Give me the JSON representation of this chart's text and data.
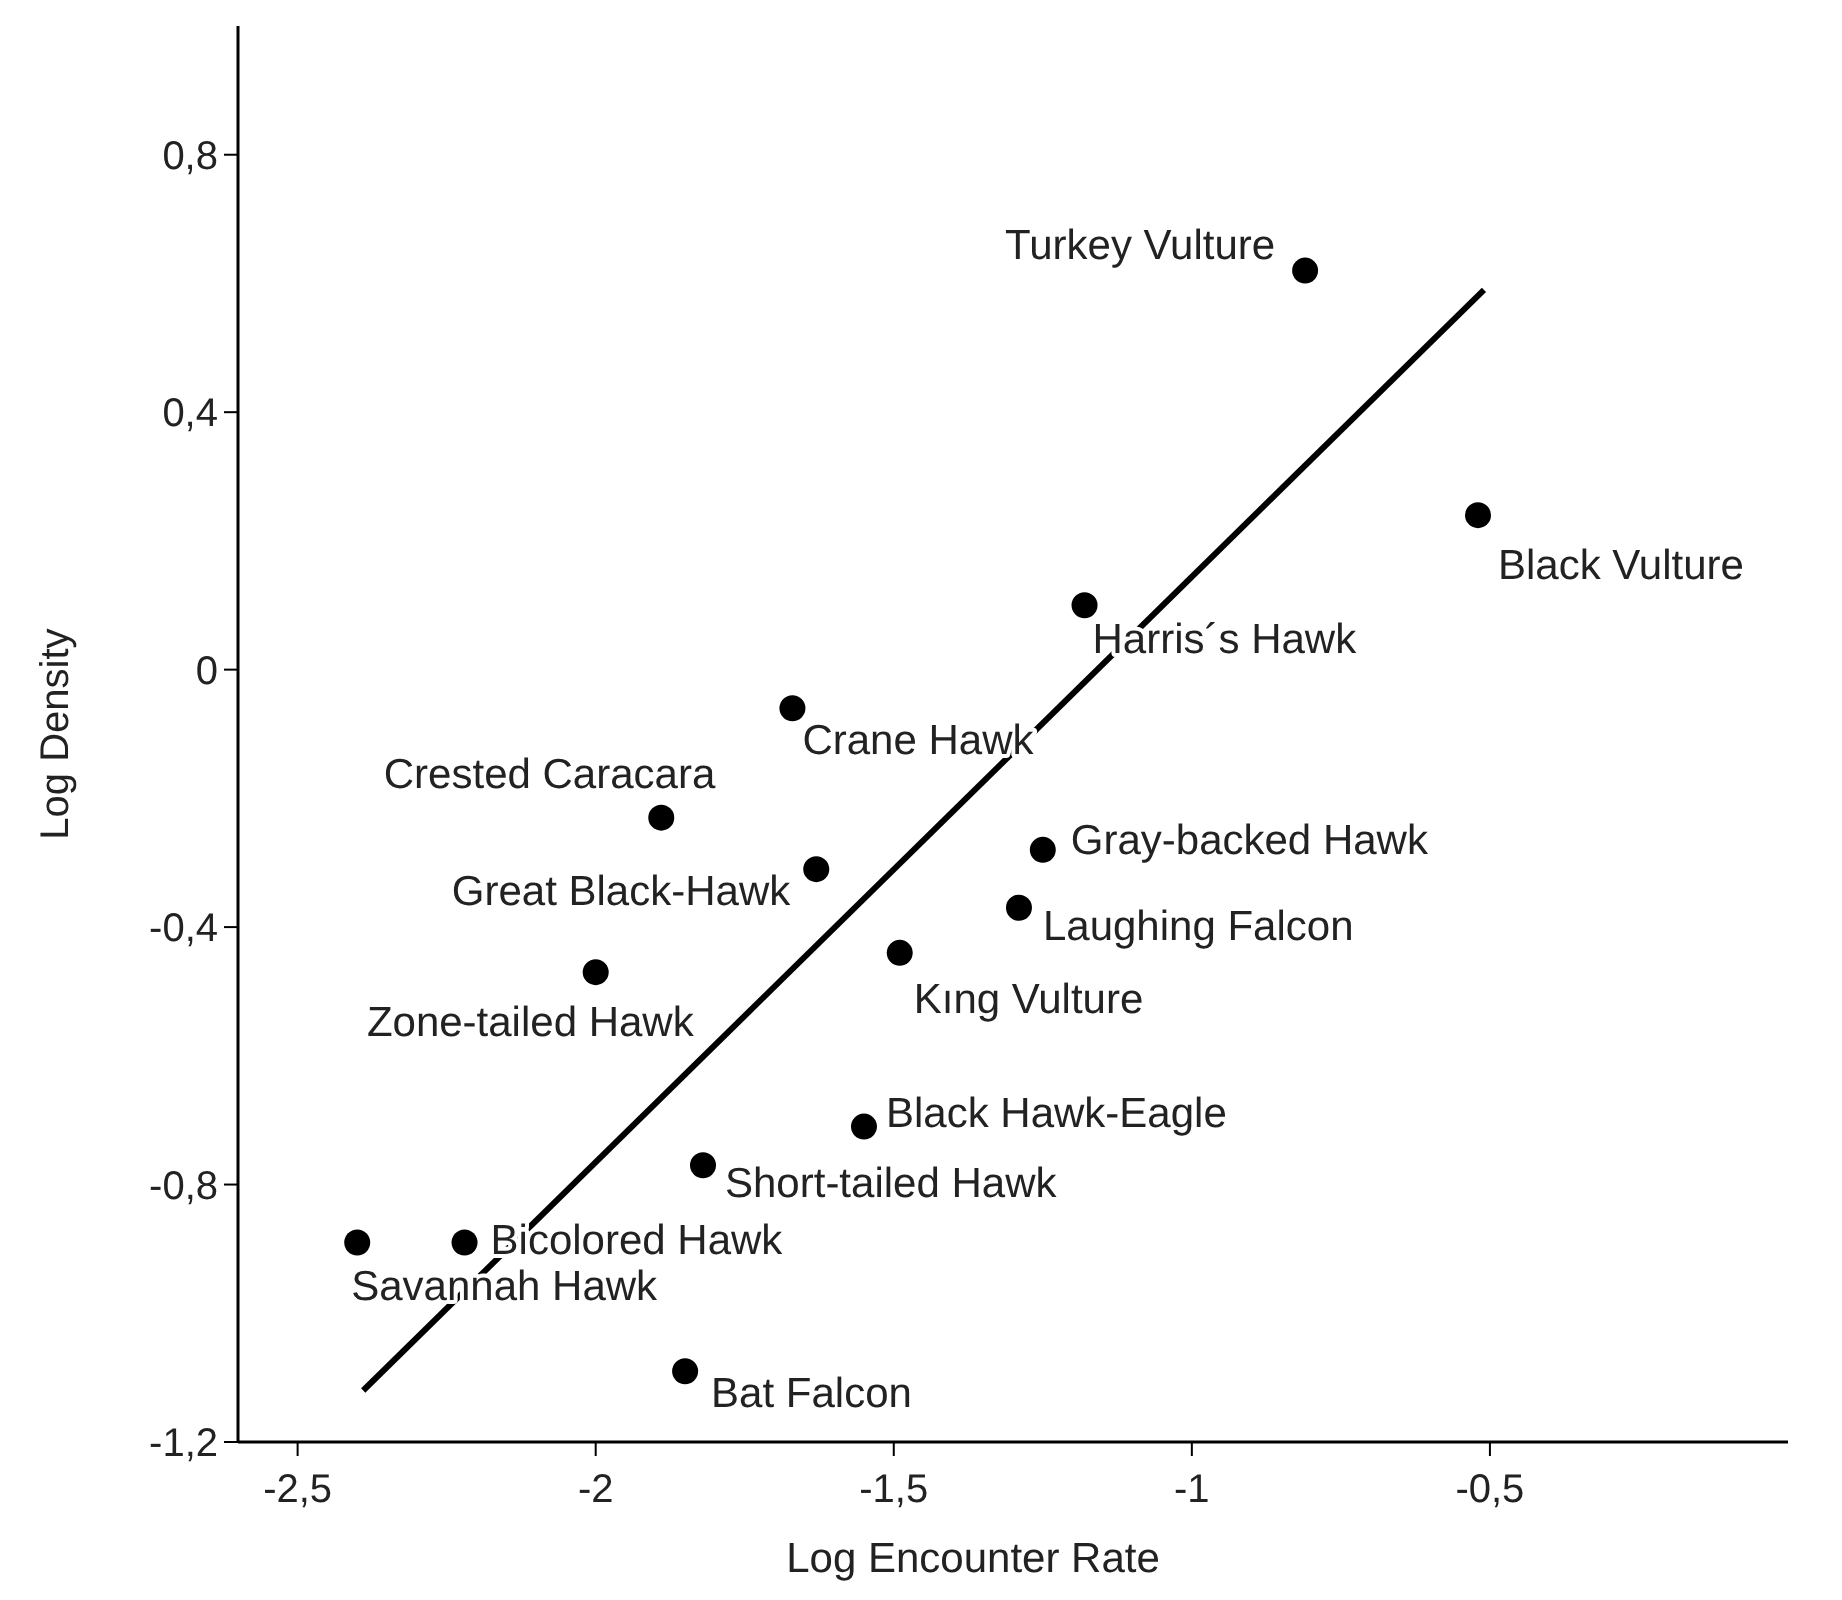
{
  "chart_data": {
    "type": "scatter",
    "xlabel": "Log Encounter Rate",
    "ylabel": "Log Density",
    "xlim": [
      -2.6,
      0
    ],
    "ylim": [
      -1.2,
      1.0
    ],
    "xticks": [
      {
        "value": -2.5,
        "label": "-2,5"
      },
      -2,
      {
        "value": -1.5,
        "label": "-1,5"
      },
      -1,
      {
        "value": -0.5,
        "label": "-0,5"
      }
    ],
    "yticks": [
      {
        "value": -1.2,
        "label": "-1,2"
      },
      {
        "value": -0.8,
        "label": "-0,8"
      },
      {
        "value": -0.4,
        "label": "-0,4"
      },
      0,
      {
        "value": 0.4,
        "label": "0,4"
      },
      {
        "value": 0.8,
        "label": "0,8"
      }
    ],
    "grid": false,
    "marker": "circle",
    "series": [
      {
        "color": "#000000",
        "x": [
          -0.81,
          -0.52,
          -1.18,
          -1.67,
          -1.89,
          -1.63,
          -1.25,
          -1.29,
          -1.49,
          -2.0,
          -1.55,
          -1.82,
          -2.22,
          -2.4,
          -1.85
        ],
        "values": [
          0.62,
          0.24,
          0.1,
          -0.06,
          -0.23,
          -0.31,
          -0.28,
          -0.37,
          -0.44,
          -0.47,
          -0.71,
          -0.77,
          -0.89,
          -0.89,
          -1.09
        ]
      },
      {
        "type": "line",
        "color": "#000000",
        "x": [
          -2.39,
          -0.51
        ],
        "values": [
          -1.12,
          0.59
        ],
        "line_style": "solid",
        "marker": "none"
      }
    ],
    "annotations": [
      {
        "text": "Turkey Vulture",
        "x": -0.81,
        "y": 0.62
      },
      {
        "text": "Black Vulture",
        "x": -0.52,
        "y": 0.24
      },
      {
        "text": "Harris´s Hawk",
        "x": -1.18,
        "y": 0.1
      },
      {
        "text": "Crane Hawk",
        "x": -1.67,
        "y": -0.06
      },
      {
        "text": "Crested Caracara",
        "x": -1.89,
        "y": -0.23
      },
      {
        "text": "Great Black-Hawk",
        "x": -1.63,
        "y": -0.31
      },
      {
        "text": "Gray-backed Hawk",
        "x": -1.25,
        "y": -0.28
      },
      {
        "text": "Laughing Falcon",
        "x": -1.29,
        "y": -0.37
      },
      {
        "text": "Kıng Vulture",
        "x": -1.49,
        "y": -0.44
      },
      {
        "text": "Zone-tailed Hawk",
        "x": -2.0,
        "y": -0.47
      },
      {
        "text": "Black Hawk-Eagle",
        "x": -1.55,
        "y": -0.71
      },
      {
        "text": "Short-tailed Hawk",
        "x": -1.82,
        "y": -0.77
      },
      {
        "text": "Bicolored Hawk",
        "x": -2.22,
        "y": -0.89
      },
      {
        "text": "Savannah Hawk",
        "x": -2.4,
        "y": -0.89
      },
      {
        "text": "Bat Falcon",
        "x": -1.85,
        "y": -1.09
      }
    ]
  }
}
